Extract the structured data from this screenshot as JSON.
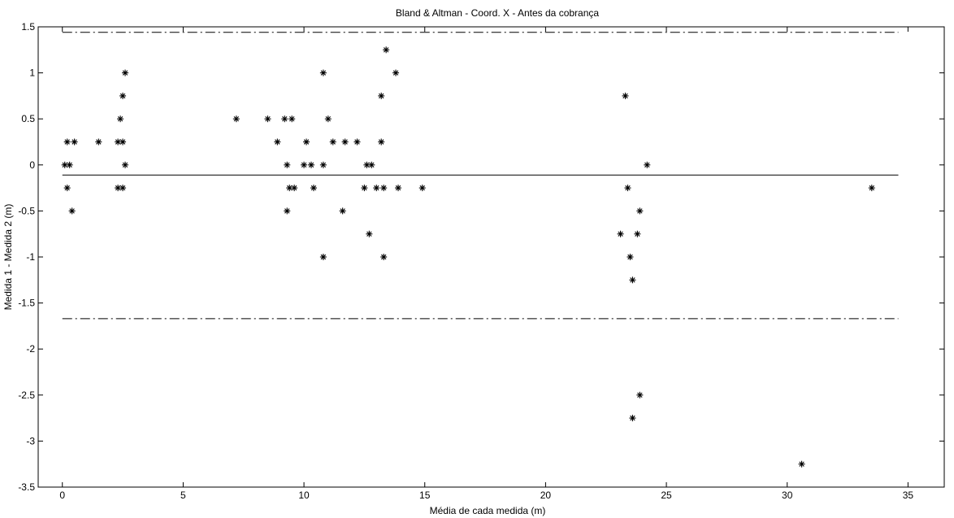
{
  "chart_data": {
    "type": "scatter",
    "title": "Bland & Altman - Coord. X - Antes da cobrança",
    "xlabel": "Média de cada medida (m)",
    "ylabel": "Medida 1 - Medida 2 (m)",
    "xlim": [
      -1,
      36.5
    ],
    "ylim": [
      -3.5,
      1.5
    ],
    "xticks": [
      0,
      5,
      10,
      15,
      20,
      25,
      30,
      35
    ],
    "yticks": [
      -3.5,
      -3,
      -2.5,
      -2,
      -1.5,
      -1,
      -0.5,
      0,
      0.5,
      1,
      1.5
    ],
    "xtick_labels": [
      "0",
      "5",
      "10",
      "15",
      "20",
      "25",
      "30",
      "35"
    ],
    "ytick_labels": [
      "-3.5",
      "-3",
      "-2.5",
      "-2",
      "-1.5",
      "-1",
      "-0.5",
      "0",
      "0.5",
      "1",
      "1.5"
    ],
    "grid": false,
    "marker": "*",
    "mean_line": {
      "y": -0.11,
      "x_range": [
        0,
        34.6
      ],
      "style": "solid"
    },
    "limit_lines": [
      {
        "y": 1.44,
        "x_range": [
          0,
          34.6
        ],
        "style": "dash-dot"
      },
      {
        "y": -1.67,
        "x_range": [
          0,
          34.6
        ],
        "style": "dash-dot"
      }
    ],
    "points": [
      [
        0.1,
        0
      ],
      [
        0.2,
        0.25
      ],
      [
        0.2,
        -0.25
      ],
      [
        0.3,
        0
      ],
      [
        0.4,
        -0.5
      ],
      [
        0.5,
        0.25
      ],
      [
        1.5,
        0.25
      ],
      [
        2.3,
        0.25
      ],
      [
        2.3,
        -0.25
      ],
      [
        2.4,
        0.5
      ],
      [
        2.5,
        0.25
      ],
      [
        2.5,
        0.75
      ],
      [
        2.5,
        -0.25
      ],
      [
        2.6,
        1.0
      ],
      [
        2.6,
        0
      ],
      [
        7.2,
        0.5
      ],
      [
        8.5,
        0.5
      ],
      [
        8.9,
        0.25
      ],
      [
        9.2,
        0.5
      ],
      [
        9.3,
        -0.5
      ],
      [
        9.3,
        0
      ],
      [
        9.4,
        -0.25
      ],
      [
        9.5,
        0.5
      ],
      [
        9.6,
        -0.25
      ],
      [
        10.0,
        0
      ],
      [
        10.1,
        0.25
      ],
      [
        10.3,
        0
      ],
      [
        10.4,
        -0.25
      ],
      [
        10.8,
        1.0
      ],
      [
        10.8,
        0
      ],
      [
        10.8,
        -1.0
      ],
      [
        11.0,
        0.5
      ],
      [
        11.2,
        0.25
      ],
      [
        11.6,
        -0.5
      ],
      [
        11.7,
        0.25
      ],
      [
        12.2,
        0.25
      ],
      [
        12.5,
        -0.25
      ],
      [
        12.6,
        0
      ],
      [
        12.7,
        -0.75
      ],
      [
        12.8,
        0
      ],
      [
        13.0,
        -0.25
      ],
      [
        13.2,
        0.25
      ],
      [
        13.2,
        0.75
      ],
      [
        13.3,
        -0.25
      ],
      [
        13.3,
        -1.0
      ],
      [
        13.4,
        1.25
      ],
      [
        13.8,
        1.0
      ],
      [
        13.9,
        -0.25
      ],
      [
        14.9,
        -0.25
      ],
      [
        23.1,
        -0.75
      ],
      [
        23.3,
        0.75
      ],
      [
        23.4,
        -0.25
      ],
      [
        23.5,
        -1.0
      ],
      [
        23.6,
        -1.25
      ],
      [
        23.6,
        -2.75
      ],
      [
        23.8,
        -0.75
      ],
      [
        23.9,
        -0.5
      ],
      [
        23.9,
        -2.5
      ],
      [
        24.2,
        0
      ],
      [
        30.6,
        -3.25
      ],
      [
        33.5,
        -0.25
      ]
    ]
  }
}
